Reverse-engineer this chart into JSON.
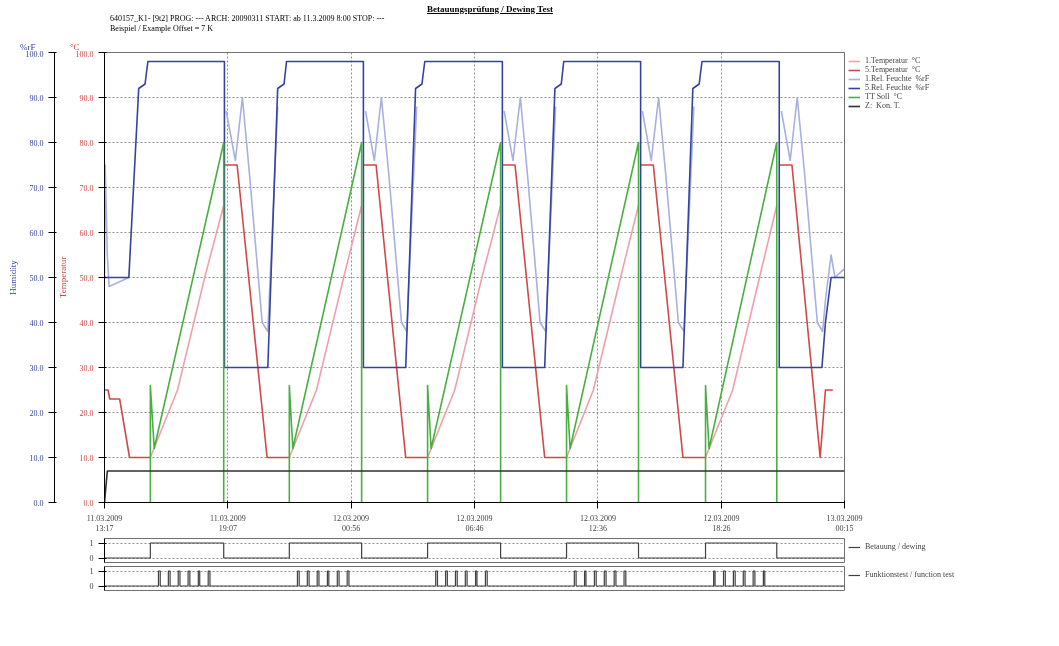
{
  "chart_data": [
    {
      "type": "line",
      "title": "Betauungsprüfung / Dewing Test",
      "subtitle": "640157_K1- [9t2] PROG: --- ARCH: 20090311 START: ab 11.3.2009 8:00 STOP: ---\nBeispiel / Example Offset = 7 K",
      "ylabel": "Humidity",
      "y2label": "Temperatur",
      "annotations": [
        "%rF",
        "°C"
      ],
      "xlim": [
        "2009-03-11T13:17",
        "2009-03-13T00:15"
      ],
      "xticks": [
        {
          "value": "2009-03-11T13:17",
          "label": "11.03.2009\n13:17"
        },
        {
          "value": "2009-03-11T19:07",
          "label": "11.03.2009\n19:07"
        },
        {
          "value": "2009-03-12T00:56",
          "label": "12.03.2009\n00:56"
        },
        {
          "value": "2009-03-12T06:46",
          "label": "12.03.2009\n06:46"
        },
        {
          "value": "2009-03-12T12:36",
          "label": "12.03.2009\n12:36"
        },
        {
          "value": "2009-03-12T18:26",
          "label": "12.03.2009\n18:26"
        },
        {
          "value": "2009-03-13T00:15",
          "label": "13.03.2009\n00:15"
        }
      ],
      "ylim": [
        0,
        100
      ],
      "yticks": [
        {
          "value": 0,
          "label": "0.0"
        },
        {
          "value": 10,
          "label": "10.0"
        },
        {
          "value": 20,
          "label": "20.0"
        },
        {
          "value": 30,
          "label": "30.0"
        },
        {
          "value": 40,
          "label": "40.0"
        },
        {
          "value": 50,
          "label": "50.0"
        },
        {
          "value": 60,
          "label": "60.0"
        },
        {
          "value": 70,
          "label": "70.0"
        },
        {
          "value": 80,
          "label": "80.0"
        },
        {
          "value": 90,
          "label": "90.0"
        },
        {
          "value": 100,
          "label": "100.0"
        }
      ],
      "y2lim": [
        0,
        100
      ],
      "y2ticks": [
        {
          "value": 0,
          "label": "0.0"
        },
        {
          "value": 10,
          "label": "10.0"
        },
        {
          "value": 20,
          "label": "20.0"
        },
        {
          "value": 30,
          "label": "30.0"
        },
        {
          "value": 40,
          "label": "40.0"
        },
        {
          "value": 50,
          "label": "50.0"
        },
        {
          "value": 60,
          "label": "60.0"
        },
        {
          "value": 70,
          "label": "70.0"
        },
        {
          "value": 80,
          "label": "80.0"
        },
        {
          "value": 90,
          "label": "90.0"
        },
        {
          "value": 100,
          "label": "100.0"
        }
      ],
      "grid": true,
      "legend": "right",
      "line_style": "solid",
      "series": [
        {
          "name": "1.Temperatur  °C",
          "color": "#f0a0a8",
          "axis": "y2",
          "x": [
            "2009-03-11T15:27",
            "2009-03-11T16:44",
            "2009-03-11T18:01",
            "2009-03-11T18:55",
            null,
            "2009-03-11T22:01",
            "2009-03-11T23:18",
            "2009-03-12T00:35",
            "2009-03-12T01:26",
            null,
            "2009-03-12T04:33",
            "2009-03-12T05:50",
            "2009-03-12T07:07",
            "2009-03-12T08:00",
            null,
            "2009-03-12T11:07",
            "2009-03-12T12:23",
            "2009-03-12T13:40",
            "2009-03-12T14:31",
            null,
            "2009-03-12T17:41",
            "2009-03-12T18:58",
            "2009-03-12T20:14",
            "2009-03-12T21:03"
          ],
          "values": [
            10,
            25,
            50,
            66,
            null,
            10,
            25,
            50,
            66,
            null,
            10,
            25,
            50,
            66,
            null,
            10,
            25,
            50,
            66,
            null,
            10,
            25,
            50,
            66
          ]
        },
        {
          "name": "5.Temperatur  °C",
          "color": "#d04848",
          "axis": "y2",
          "x": [
            "2009-03-11T13:17",
            "2009-03-11T13:27",
            "2009-03-11T13:32",
            "2009-03-11T14:00",
            "2009-03-11T14:28",
            "2009-03-11T15:27",
            null,
            "2009-03-11T18:57",
            "2009-03-11T19:33",
            "2009-03-11T20:58",
            "2009-03-11T22:01",
            null,
            "2009-03-12T01:31",
            "2009-03-12T02:07",
            "2009-03-12T03:31",
            "2009-03-12T04:35",
            null,
            "2009-03-12T08:05",
            "2009-03-12T08:41",
            "2009-03-12T10:05",
            "2009-03-12T11:09",
            null,
            "2009-03-12T14:37",
            "2009-03-12T15:13",
            "2009-03-12T16:37",
            "2009-03-12T17:41",
            null,
            "2009-03-12T21:10",
            "2009-03-12T21:46",
            "2009-03-12T23:06",
            "2009-03-12T23:21",
            "2009-03-12T23:42"
          ],
          "values": [
            25,
            25,
            23,
            23,
            10,
            10,
            null,
            75,
            75,
            10,
            10,
            null,
            75,
            75,
            10,
            10,
            null,
            75,
            75,
            10,
            10,
            null,
            75,
            75,
            10,
            10,
            null,
            75,
            75,
            10,
            25,
            25
          ]
        },
        {
          "name": "1.Rel. Feuchte  %rF",
          "color": "#a8b0e0",
          "x": [
            "2009-03-11T13:17",
            "2009-03-11T13:19",
            "2009-03-11T13:25",
            "2009-03-11T13:30",
            "2009-03-11T13:58",
            "2009-03-11T14:26",
            null,
            "2009-03-11T19:02",
            "2009-03-11T19:28",
            "2009-03-11T19:48",
            "2009-03-11T20:08",
            "2009-03-11T20:44",
            "2009-03-11T21:00",
            "2009-03-11T21:28",
            null,
            "2009-03-12T01:37",
            "2009-03-12T02:02",
            "2009-03-12T02:22",
            "2009-03-12T02:43",
            "2009-03-12T03:19",
            "2009-03-12T03:34",
            "2009-03-12T04:02",
            null,
            "2009-03-12T08:10",
            "2009-03-12T08:35",
            "2009-03-12T08:56",
            "2009-03-12T09:16",
            "2009-03-12T09:52",
            "2009-03-12T10:08",
            "2009-03-12T10:36",
            null,
            "2009-03-12T14:42",
            "2009-03-12T15:07",
            "2009-03-12T15:28",
            "2009-03-12T15:48",
            "2009-03-12T16:24",
            "2009-03-12T16:40",
            "2009-03-12T17:08",
            null,
            "2009-03-12T21:16",
            "2009-03-12T21:41",
            "2009-03-12T22:01",
            "2009-03-12T22:22",
            "2009-03-12T22:58",
            "2009-03-12T23:13",
            "2009-03-12T23:21",
            "2009-03-12T23:37",
            "2009-03-12T23:48",
            "2009-03-13T00:15"
          ],
          "values": [
            50,
            75,
            55,
            48,
            49,
            50,
            null,
            87,
            76,
            90,
            73,
            40,
            38,
            88,
            null,
            87,
            76,
            90,
            73,
            40,
            38,
            88,
            null,
            87,
            76,
            90,
            73,
            40,
            38,
            88,
            null,
            87,
            76,
            90,
            73,
            40,
            38,
            88,
            null,
            87,
            76,
            90,
            73,
            40,
            38,
            45,
            55,
            50,
            52
          ]
        },
        {
          "name": "5.Rel. Feuchte  %rF",
          "color": "#3442a0",
          "x": [
            "2009-03-11T13:17",
            "2009-03-11T14:26",
            "2009-03-11T14:54",
            "2009-03-11T15:12",
            "2009-03-11T15:20",
            "2009-03-11T18:57",
            "2009-03-11T18:57",
            "2009-03-11T21:00",
            "2009-03-11T21:28",
            "2009-03-11T21:46",
            "2009-03-11T21:53",
            "2009-03-12T01:31",
            "2009-03-12T01:31",
            "2009-03-12T03:31",
            "2009-03-12T03:59",
            "2009-03-12T04:17",
            "2009-03-12T04:25",
            "2009-03-12T08:05",
            "2009-03-12T08:05",
            "2009-03-12T10:05",
            "2009-03-12T10:34",
            "2009-03-12T10:52",
            "2009-03-12T10:59",
            "2009-03-12T14:37",
            "2009-03-12T14:37",
            "2009-03-12T16:37",
            "2009-03-12T17:05",
            "2009-03-12T17:23",
            "2009-03-12T17:31",
            "2009-03-12T21:10",
            "2009-03-12T21:10",
            "2009-03-12T23:11",
            "2009-03-12T23:21",
            "2009-03-12T23:37",
            "2009-03-13T00:15"
          ],
          "values": [
            50,
            50,
            92,
            93,
            98,
            98,
            30,
            30,
            92,
            93,
            98,
            98,
            30,
            30,
            92,
            93,
            98,
            98,
            30,
            30,
            92,
            93,
            98,
            98,
            30,
            30,
            92,
            93,
            98,
            98,
            30,
            30,
            40,
            50,
            50
          ]
        },
        {
          "name": "TT Soll  °C",
          "color": "#48b040",
          "axis": "y2",
          "x": [
            "2009-03-11T15:27",
            "2009-03-11T15:27",
            "2009-03-11T15:38",
            "2009-03-11T18:55",
            "2009-03-11T18:55",
            null,
            "2009-03-11T22:01",
            "2009-03-11T22:01",
            "2009-03-11T22:11",
            "2009-03-12T01:26",
            "2009-03-12T01:26",
            null,
            "2009-03-12T04:33",
            "2009-03-12T04:33",
            "2009-03-12T04:43",
            "2009-03-12T08:00",
            "2009-03-12T08:00",
            null,
            "2009-03-12T11:07",
            "2009-03-12T11:07",
            "2009-03-12T11:17",
            "2009-03-12T14:31",
            "2009-03-12T14:31",
            null,
            "2009-03-12T17:41",
            "2009-03-12T17:41",
            "2009-03-12T17:51",
            "2009-03-12T21:03",
            "2009-03-12T21:03"
          ],
          "values": [
            0,
            26,
            12,
            80,
            0,
            null,
            0,
            26,
            12,
            80,
            0,
            null,
            0,
            26,
            12,
            80,
            0,
            null,
            0,
            26,
            12,
            80,
            0,
            null,
            0,
            26,
            12,
            80,
            0
          ]
        },
        {
          "name": "Z:  Kon. T.",
          "color": "#303030",
          "axis": "y2",
          "x": [
            "2009-03-11T13:17",
            "2009-03-11T13:25",
            "2009-03-13T00:15"
          ],
          "values": [
            0,
            7,
            7
          ]
        }
      ]
    },
    {
      "type": "step",
      "xlim": [
        "2009-03-11T13:17",
        "2009-03-13T00:15"
      ],
      "ylim": [
        -0.3,
        1.3
      ],
      "yticks": [
        {
          "value": 0,
          "label": "0"
        },
        {
          "value": 1,
          "label": "1"
        }
      ],
      "tick_labels": "y",
      "grid": true,
      "legend": "right",
      "series": [
        {
          "name": "Betauung / dewing",
          "color": "#404040",
          "x": [
            "2009-03-11T13:17",
            "2009-03-11T15:27",
            "2009-03-11T18:55",
            "2009-03-11T22:01",
            "2009-03-12T01:26",
            "2009-03-12T04:33",
            "2009-03-12T08:00",
            "2009-03-12T11:07",
            "2009-03-12T14:31",
            "2009-03-12T17:41",
            "2009-03-12T21:03",
            "2009-03-13T00:15"
          ],
          "values": [
            0,
            1,
            0,
            1,
            0,
            1,
            0,
            1,
            0,
            1,
            0,
            0
          ]
        }
      ]
    },
    {
      "type": "step",
      "xlim": [
        "2009-03-11T13:17",
        "2009-03-13T00:15"
      ],
      "ylim": [
        -0.3,
        1.3
      ],
      "yticks": [
        {
          "value": 0,
          "label": "0"
        },
        {
          "value": 1,
          "label": "1"
        }
      ],
      "tick_labels": "y",
      "grid": true,
      "legend": "right",
      "series": [
        {
          "name": "Funktionstest / function test",
          "color": "#404040",
          "x": [
            "2009-03-11T13:17",
            "2009-03-11T15:50",
            "2009-03-11T15:55",
            "2009-03-11T16:18",
            "2009-03-11T16:23",
            "2009-03-11T16:46",
            "2009-03-11T16:51",
            "2009-03-11T17:14",
            "2009-03-11T17:19",
            "2009-03-11T17:43",
            "2009-03-11T17:47",
            "2009-03-11T18:11",
            "2009-03-11T18:16",
            "2009-03-11T22:24",
            "2009-03-11T22:29",
            "2009-03-11T22:52",
            "2009-03-11T22:57",
            "2009-03-11T23:20",
            "2009-03-11T23:25",
            "2009-03-11T23:49",
            "2009-03-11T23:53",
            "2009-03-12T00:17",
            "2009-03-12T00:22",
            "2009-03-12T00:45",
            "2009-03-12T00:50",
            "2009-03-12T04:56",
            "2009-03-12T05:01",
            "2009-03-12T05:24",
            "2009-03-12T05:29",
            "2009-03-12T05:52",
            "2009-03-12T05:57",
            "2009-03-12T06:20",
            "2009-03-12T06:25",
            "2009-03-12T06:49",
            "2009-03-12T06:53",
            "2009-03-12T07:17",
            "2009-03-12T07:22",
            "2009-03-12T11:29",
            "2009-03-12T11:34",
            "2009-03-12T11:58",
            "2009-03-12T12:02",
            "2009-03-12T12:26",
            "2009-03-12T12:31",
            "2009-03-12T12:54",
            "2009-03-12T12:59",
            "2009-03-12T13:22",
            "2009-03-12T13:27",
            "2009-03-12T13:50",
            "2009-03-12T13:55",
            "2009-03-12T18:04",
            "2009-03-12T18:08",
            "2009-03-12T18:32",
            "2009-03-12T18:37",
            "2009-03-12T19:00",
            "2009-03-12T19:05",
            "2009-03-12T19:28",
            "2009-03-12T19:33",
            "2009-03-12T19:56",
            "2009-03-12T20:01",
            "2009-03-12T20:25",
            "2009-03-12T20:29",
            "2009-03-13T00:15"
          ],
          "values": [
            0,
            1,
            0,
            1,
            0,
            1,
            0,
            1,
            0,
            1,
            0,
            1,
            0,
            1,
            0,
            1,
            0,
            1,
            0,
            1,
            0,
            1,
            0,
            1,
            0,
            1,
            0,
            1,
            0,
            1,
            0,
            1,
            0,
            1,
            0,
            1,
            0,
            1,
            0,
            1,
            0,
            1,
            0,
            1,
            0,
            1,
            0,
            1,
            0,
            1,
            0,
            1,
            0,
            1,
            0,
            1,
            0,
            1,
            0,
            1,
            0,
            0
          ]
        }
      ]
    }
  ]
}
